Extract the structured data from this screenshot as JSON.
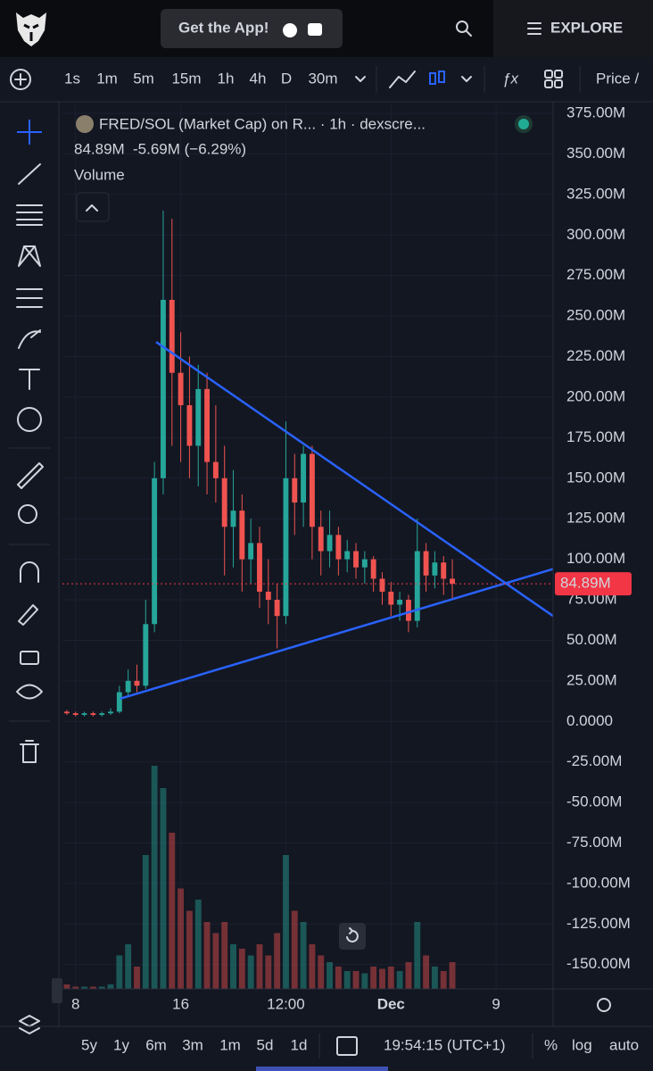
{
  "header": {
    "get_app": "Get the App!",
    "explore": "EXPLORE"
  },
  "toolbar": {
    "intervals": [
      "1s",
      "1m",
      "5m",
      "15m",
      "1h",
      "4h",
      "D",
      "30m"
    ],
    "active_interval_index": 4,
    "price_label": "Price /"
  },
  "chart_data": {
    "type": "candlestick",
    "title": "FRED/SOL (Market Cap) on R... · 1h · dexscre...",
    "last_value_text": "84.89M",
    "change_text": "-5.69M (−6.29%)",
    "volume_label": "Volume",
    "categories": [
      null,
      "8",
      null,
      null,
      null,
      null,
      null,
      null,
      null,
      null,
      null,
      null,
      null,
      "16",
      null,
      null,
      null,
      null,
      null,
      null,
      null,
      null,
      null,
      null,
      null,
      "12:00",
      null,
      null,
      null,
      null,
      null,
      null,
      null,
      null,
      null,
      null,
      null,
      "Dec",
      null,
      null,
      null,
      null,
      null,
      null,
      null,
      null,
      null,
      null,
      null,
      "9",
      null,
      null,
      null,
      null,
      null,
      null
    ],
    "open": [
      6,
      5,
      4,
      5,
      4,
      5,
      6,
      18,
      25,
      22,
      60,
      150,
      260,
      215,
      195,
      170,
      205,
      160,
      150,
      120,
      130,
      100,
      110,
      80,
      75,
      65,
      150,
      135,
      165,
      120,
      105,
      115,
      100,
      105,
      95,
      100,
      88,
      80,
      72,
      75,
      62,
      105,
      90,
      98,
      88,
      null,
      null,
      null,
      null,
      null,
      null,
      null,
      null,
      null,
      null,
      null
    ],
    "high": [
      7,
      6,
      6,
      6,
      6,
      8,
      22,
      32,
      35,
      75,
      160,
      315,
      310,
      240,
      225,
      220,
      215,
      195,
      170,
      155,
      140,
      125,
      120,
      100,
      85,
      185,
      165,
      170,
      170,
      130,
      130,
      120,
      112,
      110,
      105,
      102,
      92,
      86,
      80,
      78,
      125,
      110,
      105,
      102,
      100,
      null,
      null,
      null,
      null,
      null,
      null,
      null,
      null,
      null,
      null,
      null
    ],
    "low": [
      4,
      3,
      3,
      3,
      3,
      4,
      5,
      15,
      18,
      20,
      55,
      140,
      170,
      160,
      150,
      145,
      140,
      135,
      90,
      95,
      80,
      85,
      70,
      60,
      45,
      60,
      115,
      120,
      100,
      90,
      95,
      90,
      92,
      88,
      85,
      80,
      72,
      65,
      62,
      55,
      58,
      80,
      82,
      78,
      75,
      null,
      null,
      null,
      null,
      null,
      null,
      null,
      null,
      null,
      null,
      null
    ],
    "close": [
      5,
      4,
      5,
      4,
      5,
      6,
      18,
      25,
      22,
      60,
      150,
      260,
      215,
      195,
      170,
      205,
      160,
      150,
      120,
      130,
      100,
      110,
      80,
      75,
      65,
      150,
      135,
      165,
      120,
      105,
      115,
      100,
      105,
      95,
      100,
      88,
      80,
      72,
      75,
      62,
      105,
      90,
      98,
      88,
      84.89,
      null,
      null,
      null,
      null,
      null,
      null,
      null,
      null,
      null,
      null,
      null
    ],
    "volume": [
      2,
      1,
      1,
      1,
      1,
      2,
      15,
      20,
      10,
      60,
      100,
      90,
      70,
      45,
      35,
      40,
      30,
      25,
      30,
      20,
      18,
      15,
      20,
      15,
      25,
      60,
      35,
      30,
      20,
      15,
      12,
      10,
      8,
      8,
      7,
      10,
      9,
      10,
      8,
      12,
      30,
      15,
      10,
      8,
      12,
      null,
      null,
      null,
      null,
      null,
      null,
      null,
      null,
      null,
      null,
      null
    ],
    "up_color": "#26a69a",
    "down_color": "#ef5350",
    "ylim": [
      -165,
      380
    ],
    "yticks": [
      {
        "value": 375,
        "label": "375.00M"
      },
      {
        "value": 350,
        "label": "350.00M"
      },
      {
        "value": 325,
        "label": "325.00M"
      },
      {
        "value": 300,
        "label": "300.00M"
      },
      {
        "value": 275,
        "label": "275.00M"
      },
      {
        "value": 250,
        "label": "250.00M"
      },
      {
        "value": 225,
        "label": "225.00M"
      },
      {
        "value": 200,
        "label": "200.00M"
      },
      {
        "value": 175,
        "label": "175.00M"
      },
      {
        "value": 150,
        "label": "150.00M"
      },
      {
        "value": 125,
        "label": "125.00M"
      },
      {
        "value": 100,
        "label": "100.00M"
      },
      {
        "value": 75,
        "label": "75.00M"
      },
      {
        "value": 50,
        "label": "50.00M"
      },
      {
        "value": 25,
        "label": "25.00M"
      },
      {
        "value": 0,
        "label": "0.0000"
      },
      {
        "value": -25,
        "label": "-25.00M"
      },
      {
        "value": -50,
        "label": "-50.00M"
      },
      {
        "value": -75,
        "label": "-75.00M"
      },
      {
        "value": -100,
        "label": "-100.00M"
      },
      {
        "value": -125,
        "label": "-125.00M"
      },
      {
        "value": -150,
        "label": "-150.00M"
      }
    ],
    "last_price": {
      "value": 84.89,
      "label": "84.89M"
    },
    "trend_lines": [
      {
        "color": "#2962ff",
        "start": [
          10.2,
          234
        ],
        "end": [
          55.5,
          65
        ]
      },
      {
        "color": "#2962ff",
        "start": [
          6.1,
          14
        ],
        "end": [
          55.5,
          94
        ]
      }
    ],
    "grid": true
  },
  "bottom_bar": {
    "ranges": [
      "5y",
      "1y",
      "6m",
      "3m",
      "1m",
      "5d",
      "1d"
    ],
    "time": "19:54:15 (UTC+1)",
    "percent": "%",
    "log": "log",
    "auto": "auto"
  }
}
